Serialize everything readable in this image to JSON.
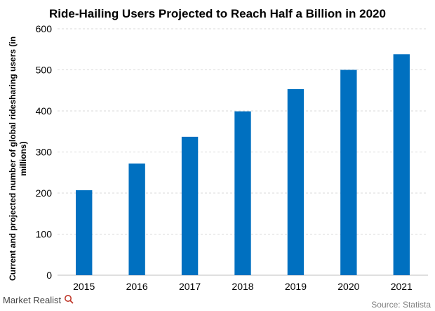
{
  "chart_data": {
    "type": "bar",
    "title": "Ride-Hailing Users Projected to Reach Half a Billion in 2020",
    "xlabel": "",
    "ylabel": "Current and projected number of global ridesharing users (in millions)",
    "ylabel_lines": [
      "Current and projected number of global ridesharing users (in",
      "millions)"
    ],
    "categories": [
      "2015",
      "2016",
      "2017",
      "2018",
      "2019",
      "2020",
      "2021"
    ],
    "values": [
      207,
      272,
      337,
      399,
      453,
      500,
      538
    ],
    "ylim": [
      0,
      600
    ],
    "yticks": [
      0,
      100,
      200,
      300,
      400,
      500,
      600
    ],
    "grid": true,
    "bar_color": "#0070c0",
    "grid_color": "#d9d9d9"
  },
  "footer": {
    "logo": "Market Realist",
    "source": "Source: Statista"
  }
}
